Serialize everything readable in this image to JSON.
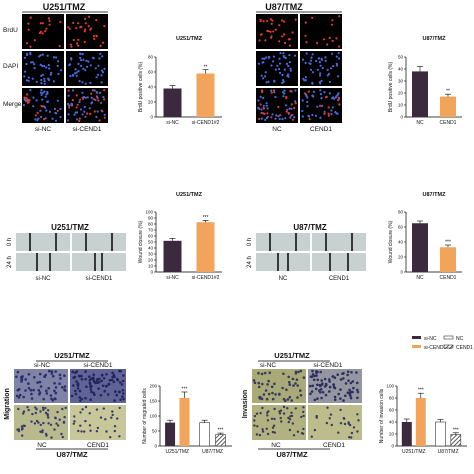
{
  "panel_a": {
    "left_title": "U251/TMZ",
    "right_title": "U87/TMZ",
    "row_labels": [
      "BrdU",
      "DAPI",
      "Merge"
    ],
    "left_groups": [
      "si-NC",
      "si-CEND1"
    ],
    "right_groups": [
      "NC",
      "CEND1"
    ]
  },
  "panel_b": {
    "left_title": "U251/TMZ",
    "right_title": "U87/TMZ",
    "row_labels": [
      "0 h",
      "24 h"
    ],
    "left_groups": [
      "si-NC",
      "si-CEND1"
    ],
    "right_groups": [
      "NC",
      "CEND1"
    ]
  },
  "panel_c": {
    "top_title": "U251/TMZ",
    "bottom_title": "U87/TMZ",
    "top_groups": [
      "si-NC",
      "si-CEND1"
    ],
    "bottom_groups": [
      "NC",
      "CEND1"
    ],
    "left_row_label": "Migration",
    "right_row_label": "Invasion"
  },
  "legend": {
    "items": [
      {
        "label": "si-NC",
        "color": "#3b2a3e"
      },
      {
        "label": "NC",
        "color": "#ffffff"
      },
      {
        "label": "si-CEND1#2",
        "color": "#f2a55a"
      },
      {
        "label": "CEND1",
        "color": "#3a3a3a"
      }
    ]
  },
  "colors": {
    "dark_bar": "#3b2a3e",
    "orange_bar": "#f2a55a",
    "nucleus_red": "#e23a2e",
    "nucleus_blue": "#4a6be0",
    "hatched_bar": "#3a3a3a"
  },
  "chart_data": [
    {
      "type": "bar",
      "title": "U251/TMZ",
      "ylabel": "BrdU positive cells (%)",
      "categories": [
        "si-NC",
        "si-CEND1#2"
      ],
      "values": [
        38,
        58
      ],
      "errors": [
        4,
        5
      ],
      "ylim": [
        0,
        80
      ],
      "yticks": [
        "0",
        "20",
        "40",
        "60",
        "80"
      ],
      "significance": [
        "",
        "**"
      ]
    },
    {
      "type": "bar",
      "title": "U87/TMZ",
      "ylabel": "BrdU positive cells (%)",
      "categories": [
        "NC",
        "CEND1"
      ],
      "values": [
        38,
        17
      ],
      "errors": [
        4,
        2
      ],
      "ylim": [
        0,
        50
      ],
      "yticks": [
        "0",
        "10",
        "20",
        "30",
        "40",
        "50"
      ],
      "significance": [
        "",
        "**"
      ]
    },
    {
      "type": "bar",
      "title": "U251/TMZ",
      "ylabel": "Wound closure (%)",
      "categories": [
        "si-NC",
        "si-CEND1#2"
      ],
      "values": [
        52,
        83
      ],
      "errors": [
        4,
        3
      ],
      "ylim": [
        0,
        100
      ],
      "yticks": [
        "0",
        "10",
        "20",
        "30",
        "40",
        "50",
        "60",
        "70",
        "80",
        "90",
        "100"
      ],
      "significance": [
        "",
        "***"
      ]
    },
    {
      "type": "bar",
      "title": "U87/TMZ",
      "ylabel": "Wound closure (%)",
      "categories": [
        "NC",
        "CEND1"
      ],
      "values": [
        65,
        33
      ],
      "errors": [
        3,
        3
      ],
      "ylim": [
        0,
        80
      ],
      "yticks": [
        "0",
        "20",
        "40",
        "60",
        "80"
      ],
      "significance": [
        "",
        "***"
      ]
    },
    {
      "type": "bar",
      "title": "",
      "ylabel": "Number of migrated cells",
      "categories": [
        "U251/TMZ",
        "U87/TMZ"
      ],
      "series": [
        {
          "name": "si-NC",
          "values": [
            78,
            null
          ],
          "errors": [
            8,
            null
          ]
        },
        {
          "name": "si-CEND1#2",
          "values": [
            160,
            null
          ],
          "errors": [
            20,
            null
          ]
        },
        {
          "name": "NC",
          "values": [
            null,
            78
          ],
          "errors": [
            null,
            8
          ]
        },
        {
          "name": "CEND1",
          "values": [
            null,
            38
          ],
          "errors": [
            null,
            5
          ]
        }
      ],
      "ylim": [
        0,
        200
      ],
      "yticks": [
        "0",
        "50",
        "100",
        "150",
        "200"
      ],
      "significance": [
        "",
        "***",
        "",
        "***"
      ]
    },
    {
      "type": "bar",
      "title": "",
      "ylabel": "Number of invasion cells",
      "categories": [
        "U251/TMZ",
        "U87/TMZ"
      ],
      "series": [
        {
          "name": "si-NC",
          "values": [
            40,
            null
          ],
          "errors": [
            5,
            null
          ]
        },
        {
          "name": "si-CEND1#2",
          "values": [
            80,
            null
          ],
          "errors": [
            8,
            null
          ]
        },
        {
          "name": "NC",
          "values": [
            null,
            40
          ],
          "errors": [
            null,
            4
          ]
        },
        {
          "name": "CEND1",
          "values": [
            null,
            19
          ],
          "errors": [
            null,
            3
          ]
        }
      ],
      "ylim": [
        0,
        100
      ],
      "yticks": [
        "0",
        "20",
        "40",
        "60",
        "80",
        "100"
      ],
      "significance": [
        "",
        "***",
        "",
        "***"
      ]
    }
  ]
}
